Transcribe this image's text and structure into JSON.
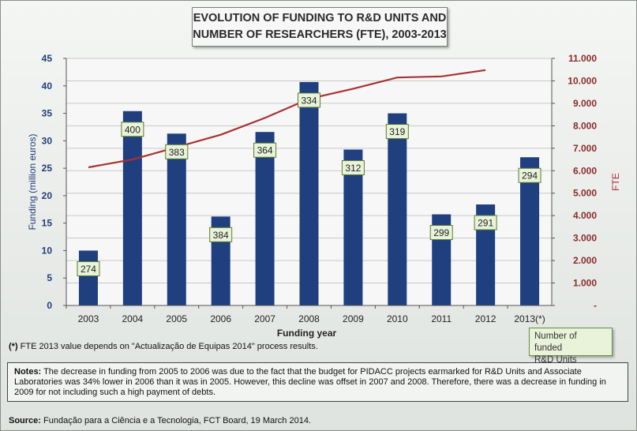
{
  "title_line1": "EVOLUTION OF FUNDING TO R&D UNITS AND",
  "title_line2": "NUMBER OF RESEARCHERS (FTE), 2003-2013",
  "footnote_marker": "(*)",
  "footnote_text": " FTE 2013 value depends on \"Actualização de Equipas 2014\" process results.",
  "legend_line1": "Number of funded",
  "legend_line2": "R&D Units",
  "notes_label": "Notes:",
  "notes_text": " The decrease in funding from 2005 to 2006 was due to the fact that the budget for PIDACC projects earmarked for R&D Units and Associate Laboratories was 34% lower in 2006 than it was in 2005. However, this decline was offset in 2007 and 2008. Therefore, there was a decrease in funding in 2009 for not including such a high payment of debts.",
  "source_label": "Source:",
  "source_text": " Fundação para a Ciência e a Tecnologia, FCT Board, 19  March 2014.",
  "colors": {
    "bar": "#1f3f7f",
    "line": "#a83232",
    "label_bg": "#e9f3d9",
    "label_border": "#5a7d2e",
    "grid": "#c8c8c8"
  },
  "chart_data": {
    "type": "bar",
    "categories": [
      "2003",
      "2004",
      "2005",
      "2006",
      "2007",
      "2008",
      "2009",
      "2010",
      "2011",
      "2012",
      "2013(*)"
    ],
    "xlabel": "Funding year",
    "ylabel": "Funding (million euros)",
    "ylim": [
      0,
      45
    ],
    "yticks": [
      "0",
      "5",
      "10",
      "15",
      "20",
      "25",
      "30",
      "35",
      "40",
      "45"
    ],
    "y2label": "FTE",
    "y2lim": [
      0,
      11000
    ],
    "y2ticks": [
      "-",
      "1.000",
      "2.000",
      "3.000",
      "4.000",
      "5.000",
      "6.000",
      "7.000",
      "8.000",
      "9.000",
      "10.000",
      "11.000"
    ],
    "grid": true,
    "series": [
      {
        "name": "Number of funded R&D Units",
        "type": "bar",
        "axis": "left",
        "values": [
          10,
          35.4,
          31.3,
          16.2,
          31.6,
          40.7,
          28.4,
          35,
          16.6,
          18.4,
          27
        ],
        "labels": [
          "274",
          "400",
          "383",
          "384",
          "364",
          "334",
          "312",
          "319",
          "299",
          "291",
          "294"
        ]
      },
      {
        "type": "line",
        "axis": "right",
        "values": [
          6150,
          6500,
          7050,
          7600,
          8350,
          9200,
          9650,
          10150,
          10200,
          10480,
          null
        ]
      }
    ]
  }
}
